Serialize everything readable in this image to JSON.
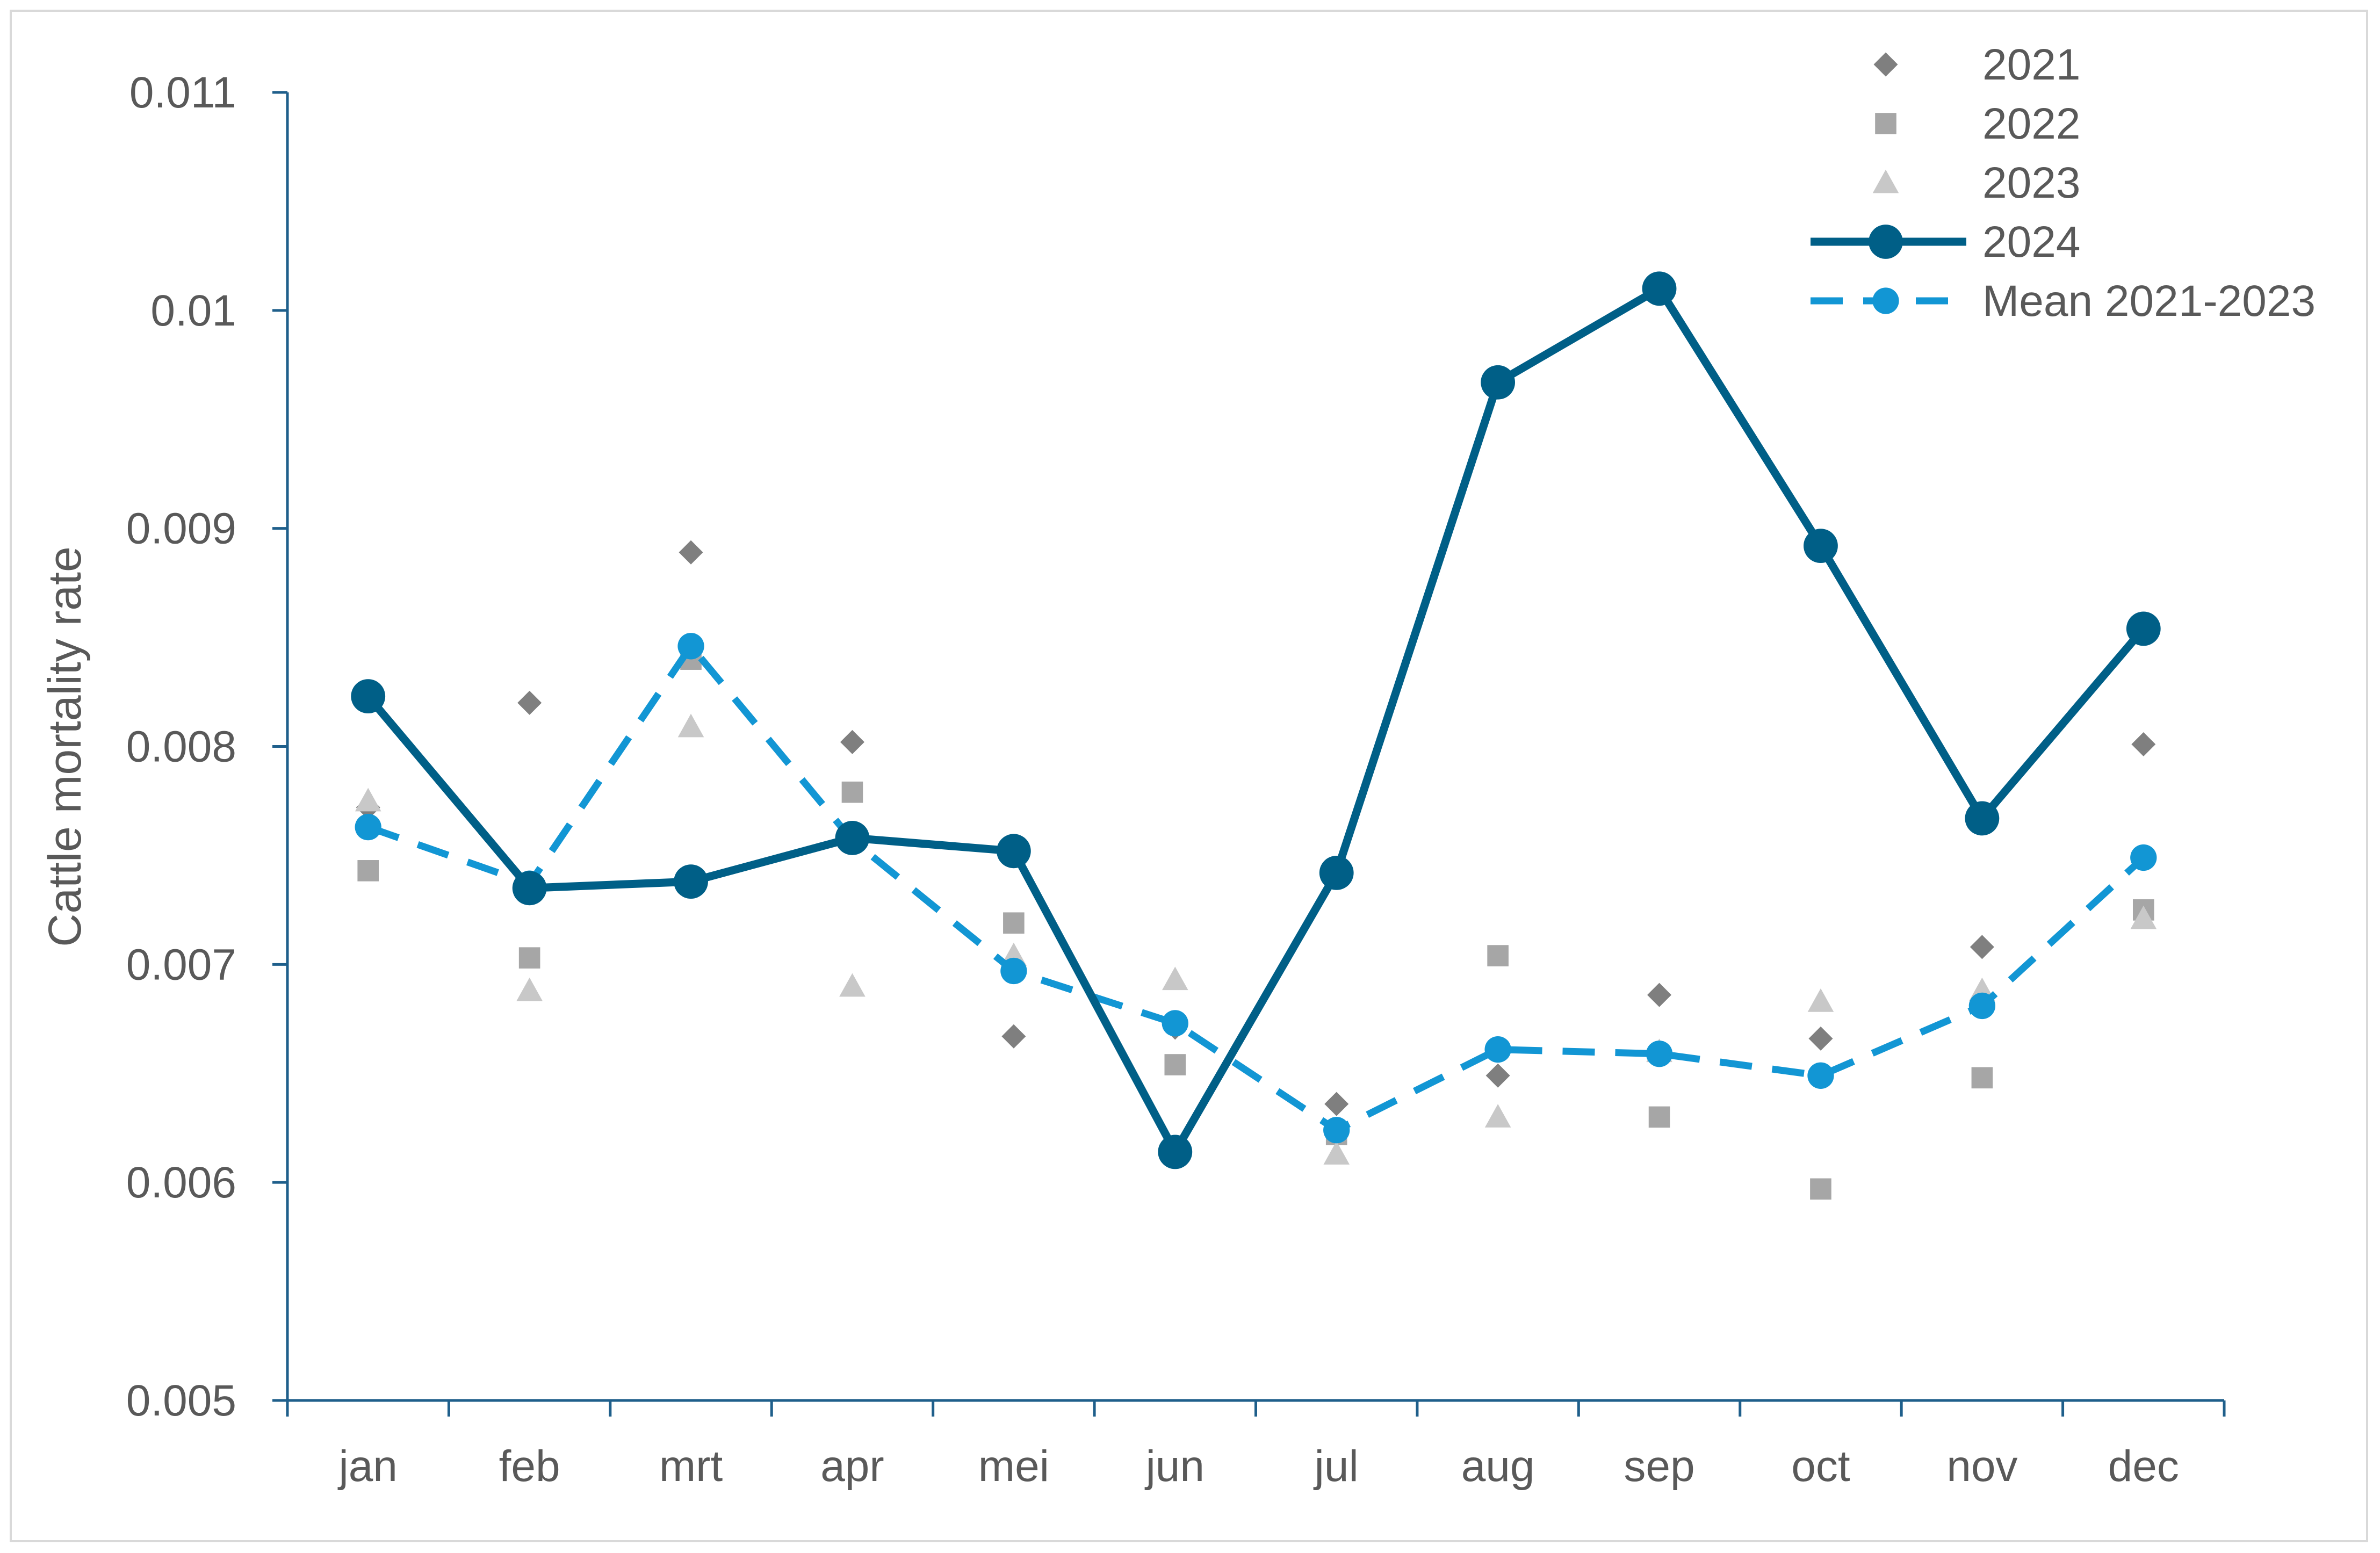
{
  "chart_data": {
    "type": "line",
    "title": "",
    "xlabel": "",
    "ylabel": "Cattle mortality rate",
    "categories": [
      "jan",
      "feb",
      "mrt",
      "apr",
      "mei",
      "jun",
      "jul",
      "aug",
      "sep",
      "oct",
      "nov",
      "dec"
    ],
    "ylim": [
      0.005,
      0.011
    ],
    "yticks": [
      "0.005",
      "0.006",
      "0.007",
      "0.008",
      "0.009",
      "0.01",
      "0.011"
    ],
    "grid": false,
    "legend_position": "top-right",
    "series": [
      {
        "name": "2021",
        "style": "markers",
        "marker": "diamond",
        "color": "#7f7f7f",
        "values": [
          0.00772,
          0.0082,
          0.00889,
          0.00802,
          0.00667,
          0.00671,
          0.00636,
          0.00649,
          0.00686,
          0.00666,
          0.00708,
          0.00801
        ]
      },
      {
        "name": "2022",
        "style": "markers",
        "marker": "square",
        "color": "#a6a6a6",
        "values": [
          0.00743,
          0.00703,
          0.0084,
          0.00779,
          0.00719,
          0.00654,
          0.00622,
          0.00704,
          0.0063,
          0.00597,
          0.00648,
          0.00725
        ]
      },
      {
        "name": "2023",
        "style": "markers",
        "marker": "triangle",
        "color": "#c8c8c8",
        "values": [
          0.00775,
          0.00688,
          0.00809,
          0.0069,
          0.00704,
          0.00693,
          0.00613,
          0.0063,
          0.0066,
          0.00683,
          0.00688,
          0.00721
        ]
      },
      {
        "name": "2024",
        "style": "solid-line",
        "marker": "circle",
        "color": "#005f87",
        "values": [
          0.00823,
          0.00735,
          0.00738,
          0.00758,
          0.00752,
          0.00614,
          0.00742,
          0.00967,
          0.0101,
          0.00892,
          0.00767,
          0.00854
        ]
      },
      {
        "name": "Mean 2021-2023",
        "style": "dashed-line",
        "marker": "circle",
        "color": "#1296d4",
        "values": [
          0.00763,
          0.00737,
          0.00846,
          0.00757,
          0.00697,
          0.00673,
          0.00624,
          0.00661,
          0.00659,
          0.00649,
          0.00681,
          0.00749
        ]
      }
    ]
  }
}
